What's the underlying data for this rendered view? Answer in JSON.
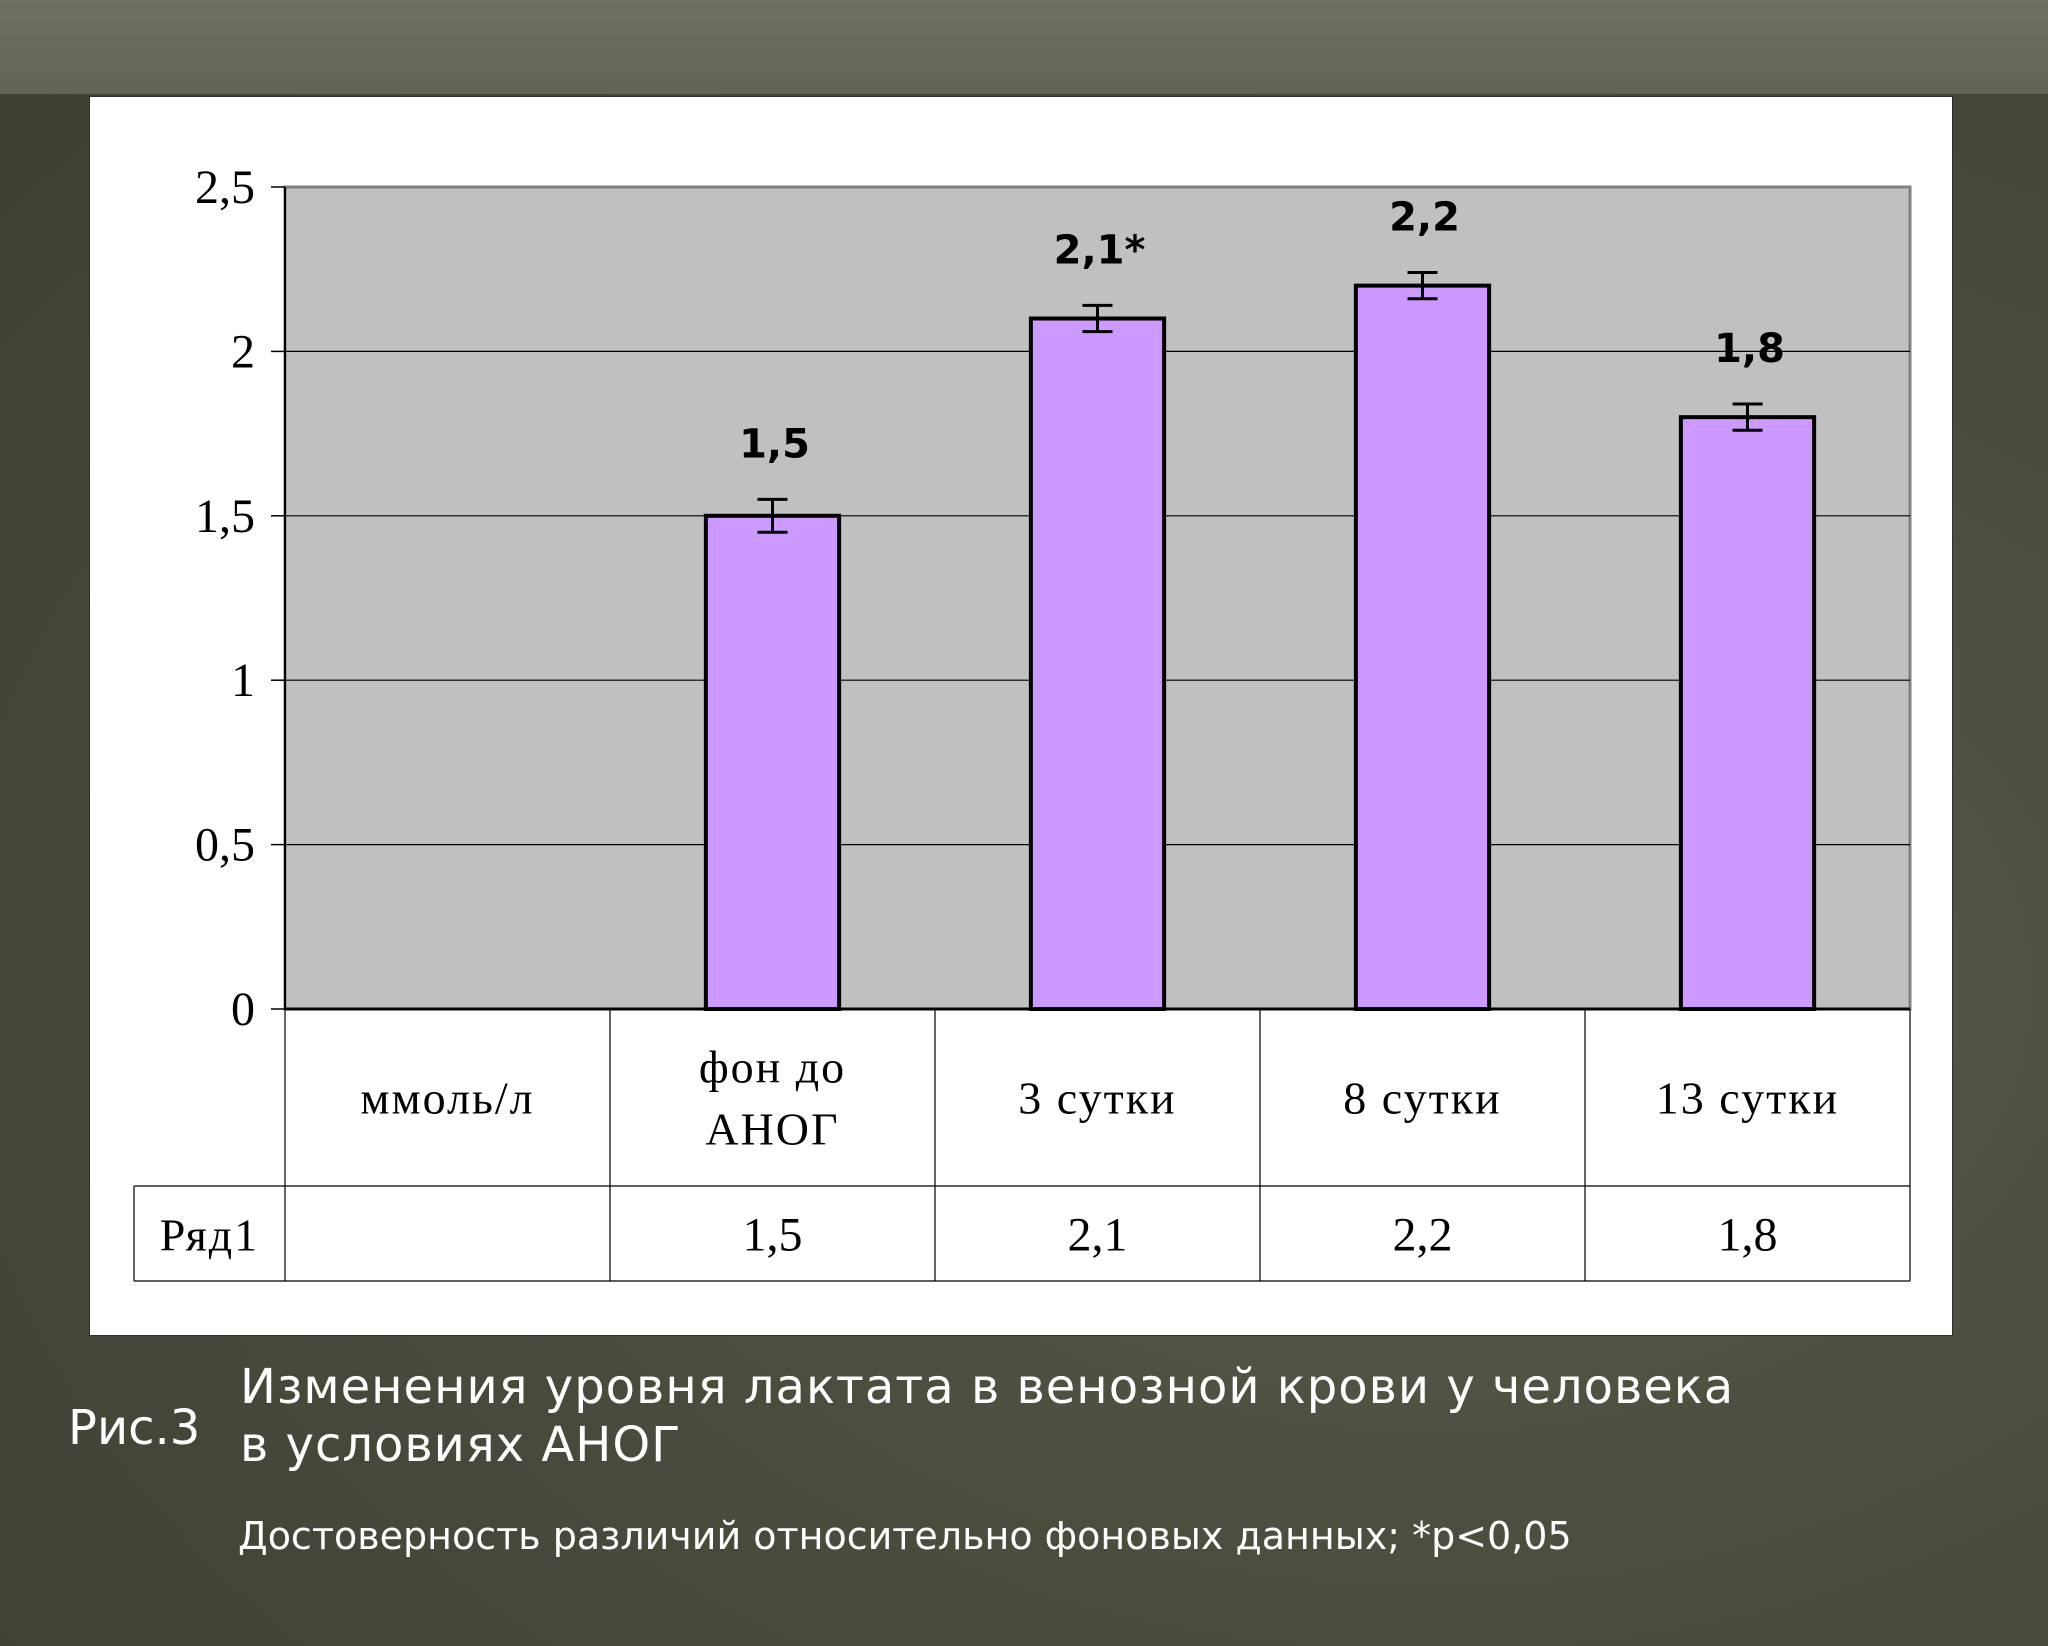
{
  "chart_data": {
    "type": "bar",
    "categories": [
      "ммоль/л",
      "фон до АНОГ",
      "3 сутки",
      "8 сутки",
      "13 сутки"
    ],
    "category_lines": [
      [
        "ммоль/л"
      ],
      [
        "фон до",
        "АНОГ"
      ],
      [
        "3 сутки"
      ],
      [
        "8 сутки"
      ],
      [
        "13 сутки"
      ]
    ],
    "series": [
      {
        "name": "Ряд1",
        "values": [
          null,
          1.5,
          2.1,
          2.2,
          1.8
        ],
        "table_values": [
          "",
          "1,5",
          "2,1",
          "2,2",
          "1,8"
        ],
        "error": [
          null,
          0.05,
          0.04,
          0.04,
          0.04
        ]
      }
    ],
    "data_labels": [
      "",
      "1,5",
      "2,1*",
      "2,2",
      "1,8"
    ],
    "ylim": [
      0,
      2.5
    ],
    "yticks": [
      0,
      0.5,
      1,
      1.5,
      2,
      2.5
    ],
    "ytick_labels": [
      "0",
      "0,5",
      "1",
      "1,5",
      "2",
      "2,5"
    ],
    "grid": true,
    "data_table": true,
    "bar_color": "#cc99ff",
    "plot_background": "#c0c0c0"
  },
  "figure": {
    "number": "Рис.3",
    "title_line1": "Изменения уровня лактата в венозной крови у человека",
    "title_line2": "в условиях АНОГ",
    "note": "Достоверность различий относительно фоновых данных; *p<0,05"
  }
}
